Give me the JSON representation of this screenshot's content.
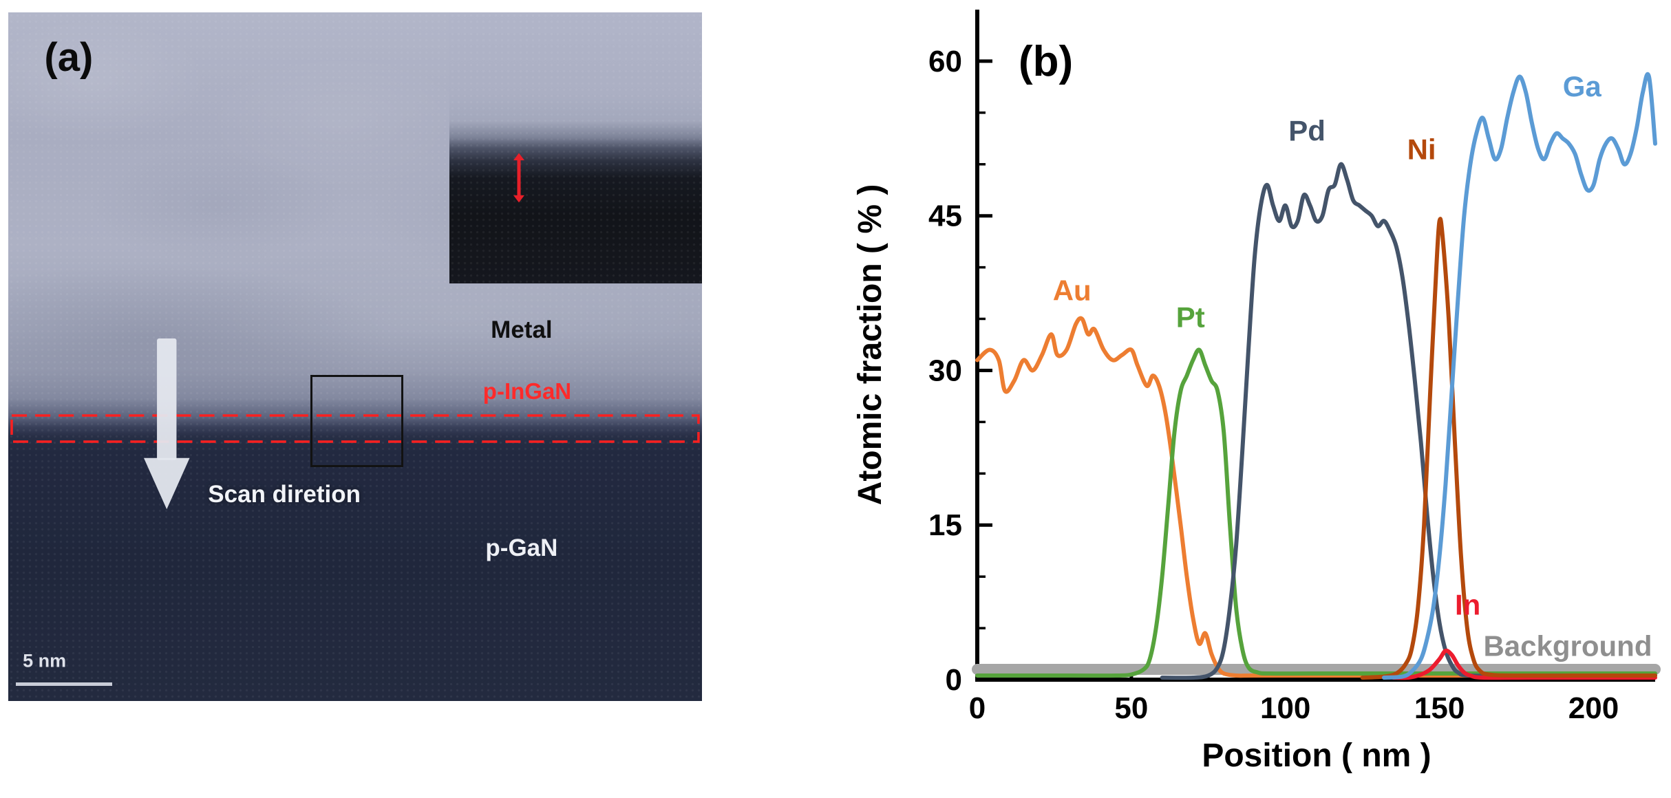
{
  "figure": {
    "panel_a": {
      "label": "(a)",
      "annotations": {
        "metal": "Metal",
        "p_ingan": "p-InGaN",
        "scan_direction": "Scan diretion",
        "p_gan": "p-GaN",
        "scale_bar": "5 nm"
      },
      "colors": {
        "p_ingan_label": "#FF2A2A",
        "roi_dashed": "#FF2020",
        "thickness_arrow": "#E8202A"
      }
    },
    "panel_b": {
      "label": "(b)"
    }
  },
  "chart_data": {
    "type": "line",
    "title": "",
    "xlabel": "Position ( nm )",
    "ylabel": "Atomic fraction ( % )",
    "xlim": [
      0,
      220
    ],
    "ylim": [
      0,
      65
    ],
    "x_major_ticks": [
      0,
      50,
      100,
      150,
      200
    ],
    "x_minor_step": 25,
    "y_major_ticks": [
      0,
      15,
      30,
      45,
      60
    ],
    "y_minor_step": 5,
    "grid": false,
    "legend": "inline-labels",
    "series": [
      {
        "name": "Background",
        "color": "#A6A6A6",
        "width": 16,
        "label_color": "#8F8F8F",
        "label_pos": [
          219,
          2.3
        ],
        "label_anchor": "end",
        "points": [
          [
            0,
            1
          ],
          [
            220,
            1
          ]
        ]
      },
      {
        "name": "Au",
        "color": "#ED7D31",
        "width": 6,
        "label_pos": [
          24.5,
          36.8
        ],
        "points": [
          [
            0,
            31
          ],
          [
            4,
            32
          ],
          [
            7,
            31
          ],
          [
            9,
            28
          ],
          [
            12,
            29
          ],
          [
            15,
            31
          ],
          [
            18,
            30
          ],
          [
            21,
            31.5
          ],
          [
            24,
            33.5
          ],
          [
            26,
            31.5
          ],
          [
            29,
            32
          ],
          [
            32,
            34.5
          ],
          [
            34,
            35
          ],
          [
            36,
            33.5
          ],
          [
            38,
            34
          ],
          [
            41,
            32
          ],
          [
            44,
            31
          ],
          [
            47,
            31.5
          ],
          [
            50,
            32
          ],
          [
            52,
            30.5
          ],
          [
            55,
            28.5
          ],
          [
            57,
            29.5
          ],
          [
            59,
            28.5
          ],
          [
            61,
            26
          ],
          [
            63,
            22
          ],
          [
            66,
            15
          ],
          [
            68,
            10
          ],
          [
            70,
            6
          ],
          [
            72,
            3.5
          ],
          [
            74,
            4.5
          ],
          [
            76,
            2.5
          ],
          [
            78,
            1.2
          ],
          [
            80,
            0.6
          ],
          [
            84,
            0.4
          ],
          [
            90,
            0.4
          ],
          [
            110,
            0.4
          ],
          [
            140,
            0.4
          ],
          [
            170,
            0.4
          ],
          [
            200,
            0.4
          ],
          [
            220,
            0.4
          ]
        ]
      },
      {
        "name": "Pt",
        "color": "#56A33C",
        "width": 6,
        "label_pos": [
          64.5,
          34.2
        ],
        "points": [
          [
            0,
            0.4
          ],
          [
            30,
            0.4
          ],
          [
            45,
            0.4
          ],
          [
            50,
            0.5
          ],
          [
            54,
            1
          ],
          [
            56,
            2
          ],
          [
            58,
            5
          ],
          [
            60,
            10
          ],
          [
            62,
            17
          ],
          [
            64,
            24
          ],
          [
            66,
            28
          ],
          [
            68,
            29.5
          ],
          [
            70,
            31
          ],
          [
            72,
            32
          ],
          [
            74,
            30.5
          ],
          [
            76,
            29
          ],
          [
            78,
            28
          ],
          [
            80,
            24
          ],
          [
            82,
            15
          ],
          [
            84,
            7
          ],
          [
            86,
            3
          ],
          [
            88,
            1.2
          ],
          [
            91,
            0.7
          ],
          [
            95,
            0.6
          ],
          [
            110,
            0.6
          ],
          [
            140,
            0.6
          ],
          [
            170,
            0.6
          ],
          [
            200,
            0.6
          ],
          [
            220,
            0.6
          ]
        ]
      },
      {
        "name": "Pd",
        "color": "#44546A",
        "width": 6,
        "label_pos": [
          101,
          52.3
        ],
        "points": [
          [
            60,
            0.2
          ],
          [
            70,
            0.2
          ],
          [
            75,
            0.4
          ],
          [
            78,
            1.2
          ],
          [
            80,
            3
          ],
          [
            82,
            7
          ],
          [
            84,
            13
          ],
          [
            86,
            22
          ],
          [
            88,
            32
          ],
          [
            90,
            41
          ],
          [
            92,
            46
          ],
          [
            94,
            48
          ],
          [
            96,
            46
          ],
          [
            98,
            44.5
          ],
          [
            100,
            46
          ],
          [
            102,
            44
          ],
          [
            104,
            44.5
          ],
          [
            106,
            47
          ],
          [
            108,
            46
          ],
          [
            110,
            44.5
          ],
          [
            112,
            45
          ],
          [
            114,
            47.5
          ],
          [
            116,
            48
          ],
          [
            118,
            50
          ],
          [
            120,
            48.5
          ],
          [
            122,
            46.5
          ],
          [
            124,
            46
          ],
          [
            126,
            45.5
          ],
          [
            128,
            45
          ],
          [
            130,
            44
          ],
          [
            132,
            44.5
          ],
          [
            134,
            43.5
          ],
          [
            136,
            42
          ],
          [
            138,
            39
          ],
          [
            140,
            34.5
          ],
          [
            142,
            29
          ],
          [
            144,
            23
          ],
          [
            146,
            16
          ],
          [
            148,
            10
          ],
          [
            150,
            5.5
          ],
          [
            152,
            2.8
          ],
          [
            154,
            1.4
          ],
          [
            156,
            0.7
          ],
          [
            160,
            0.4
          ],
          [
            180,
            0.4
          ],
          [
            200,
            0.4
          ],
          [
            220,
            0.4
          ]
        ]
      },
      {
        "name": "In",
        "color": "#EC1C2E",
        "width": 6,
        "label_pos": [
          155,
          6.3
        ],
        "points": [
          [
            135,
            0.2
          ],
          [
            140,
            0.2
          ],
          [
            144,
            0.5
          ],
          [
            147,
            1
          ],
          [
            150,
            2
          ],
          [
            152,
            2.8
          ],
          [
            154,
            2.4
          ],
          [
            156,
            1.4
          ],
          [
            158,
            0.7
          ],
          [
            160,
            0.4
          ],
          [
            164,
            0.2
          ],
          [
            180,
            0.2
          ],
          [
            200,
            0.2
          ],
          [
            220,
            0.2
          ]
        ]
      },
      {
        "name": "Ni",
        "color": "#B4490C",
        "width": 6,
        "label_pos": [
          139.5,
          50.5
        ],
        "points": [
          [
            125,
            0.2
          ],
          [
            132,
            0.3
          ],
          [
            136,
            0.6
          ],
          [
            139,
            1.5
          ],
          [
            141,
            3
          ],
          [
            143,
            7
          ],
          [
            145,
            15
          ],
          [
            147,
            28
          ],
          [
            149,
            40
          ],
          [
            150,
            44.5
          ],
          [
            151,
            43
          ],
          [
            153,
            35
          ],
          [
            155,
            23
          ],
          [
            157,
            12
          ],
          [
            159,
            5
          ],
          [
            161,
            2
          ],
          [
            163,
            0.9
          ],
          [
            166,
            0.5
          ],
          [
            175,
            0.4
          ],
          [
            200,
            0.4
          ],
          [
            220,
            0.4
          ]
        ]
      },
      {
        "name": "Ga",
        "color": "#5B9BD5",
        "width": 6,
        "label_pos": [
          190,
          56.6
        ],
        "points": [
          [
            132,
            0.2
          ],
          [
            138,
            0.3
          ],
          [
            141,
            0.8
          ],
          [
            144,
            2
          ],
          [
            146,
            4
          ],
          [
            148,
            7
          ],
          [
            150,
            12
          ],
          [
            152,
            19
          ],
          [
            154,
            28
          ],
          [
            156,
            37
          ],
          [
            158,
            45
          ],
          [
            160,
            50
          ],
          [
            162,
            53
          ],
          [
            164,
            54.5
          ],
          [
            166,
            52.5
          ],
          [
            168,
            50.5
          ],
          [
            170,
            51.5
          ],
          [
            172,
            54.5
          ],
          [
            174,
            57
          ],
          [
            176,
            58.5
          ],
          [
            178,
            57
          ],
          [
            180,
            54
          ],
          [
            182,
            51.5
          ],
          [
            184,
            50.5
          ],
          [
            186,
            52
          ],
          [
            188,
            53
          ],
          [
            190,
            52.5
          ],
          [
            192,
            52
          ],
          [
            194,
            51
          ],
          [
            196,
            49
          ],
          [
            198,
            47.5
          ],
          [
            200,
            48
          ],
          [
            202,
            50.5
          ],
          [
            204,
            52
          ],
          [
            206,
            52.5
          ],
          [
            208,
            51.5
          ],
          [
            210,
            50
          ],
          [
            212,
            51
          ],
          [
            214,
            53.5
          ],
          [
            216,
            57
          ],
          [
            218,
            58.5
          ],
          [
            220,
            52
          ]
        ]
      }
    ]
  }
}
